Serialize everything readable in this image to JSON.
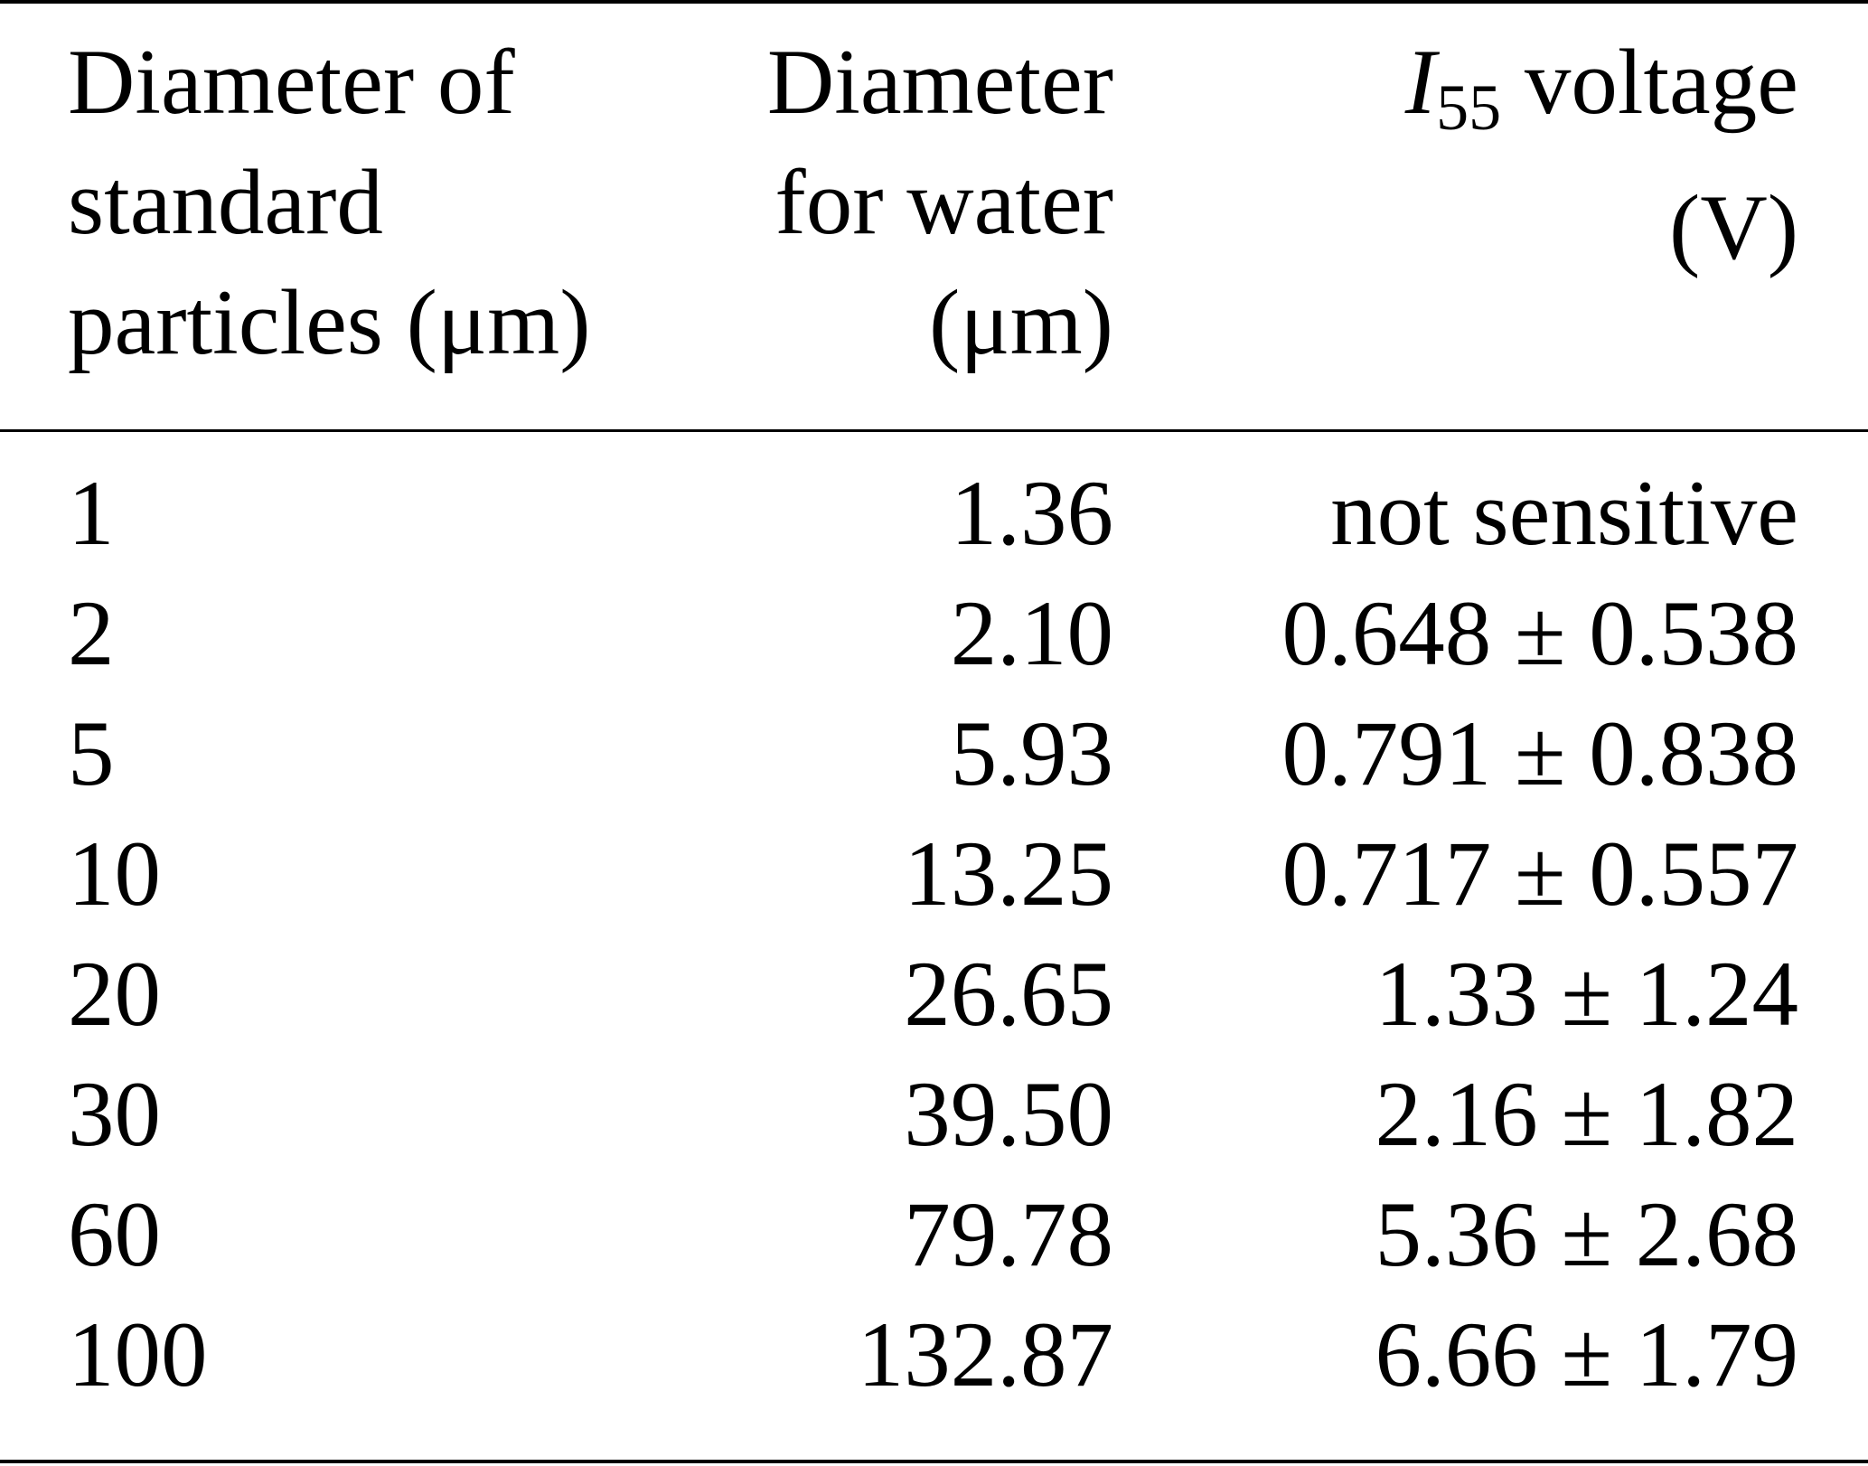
{
  "table": {
    "headers": {
      "col1": [
        "Diameter of",
        "standard",
        "particles (μm)"
      ],
      "col2": [
        "Diameter",
        "for water",
        "(μm)"
      ],
      "col3": {
        "symbol": "I",
        "subscript": "55",
        "line1_rest": " voltage",
        "line2": "(V)"
      }
    },
    "rows": [
      {
        "standard": "1",
        "water": "1.36",
        "voltage": "not sensitive"
      },
      {
        "standard": "2",
        "water": "2.10",
        "voltage": "0.648 ± 0.538"
      },
      {
        "standard": "5",
        "water": "5.93",
        "voltage": "0.791 ± 0.838"
      },
      {
        "standard": "10",
        "water": "13.25",
        "voltage": "0.717 ± 0.557"
      },
      {
        "standard": "20",
        "water": "26.65",
        "voltage": "1.33 ± 1.24"
      },
      {
        "standard": "30",
        "water": "39.50",
        "voltage": "2.16 ± 1.82"
      },
      {
        "standard": "60",
        "water": "79.78",
        "voltage": "5.36 ± 2.68"
      },
      {
        "standard": "100",
        "water": "132.87",
        "voltage": "6.66 ± 1.79"
      }
    ]
  }
}
